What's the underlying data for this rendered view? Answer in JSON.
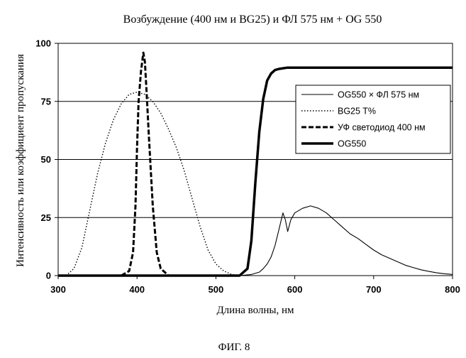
{
  "chart_data": {
    "type": "line",
    "title": "Возбуждение (400 нм и BG25) и ФЛ 575 нм + OG 550",
    "xlabel": "Длина волны, нм",
    "ylabel": "Интенсивность или коэффициент пропускания",
    "xlim": [
      300,
      800
    ],
    "ylim": [
      0,
      100
    ],
    "x_ticks": [
      "300",
      "400",
      "500",
      "600",
      "700",
      "800"
    ],
    "y_ticks": [
      "0",
      "25",
      "50",
      "75",
      "100"
    ],
    "grid": "horizontal",
    "legend_position": "top-right",
    "series": [
      {
        "name": "OG550 × ФЛ 575 нм",
        "style": "thin-solid",
        "x": [
          530,
          545,
          555,
          560,
          565,
          570,
          575,
          580,
          585,
          588,
          591,
          595,
          600,
          610,
          620,
          630,
          640,
          650,
          660,
          670,
          680,
          690,
          700,
          710,
          720,
          730,
          740,
          750,
          760,
          770,
          780,
          790,
          800
        ],
        "y": [
          0,
          0.5,
          1.5,
          3,
          5,
          8,
          13,
          20,
          27,
          24,
          19,
          24,
          27,
          29,
          30,
          29,
          27,
          24,
          21,
          18,
          16,
          13.5,
          11,
          9,
          7.5,
          6,
          4.5,
          3.5,
          2.5,
          1.8,
          1.2,
          0.8,
          0.5
        ]
      },
      {
        "name": "BG25 T%",
        "style": "dotted",
        "x": [
          310,
          320,
          330,
          340,
          350,
          360,
          370,
          380,
          390,
          400,
          410,
          420,
          430,
          440,
          450,
          460,
          470,
          480,
          490,
          500,
          510,
          520,
          530
        ],
        "y": [
          0,
          3,
          12,
          28,
          44,
          57,
          67,
          74,
          78,
          79,
          78,
          75,
          70,
          63,
          55,
          45,
          33,
          21,
          11,
          5,
          2,
          0.5,
          0
        ]
      },
      {
        "name": "УФ светодиод 400 нм",
        "style": "dashed",
        "x": [
          380,
          390,
          395,
          398,
          400,
          402,
          405,
          408,
          410,
          412,
          415,
          420,
          425,
          430,
          440,
          460
        ],
        "y": [
          0,
          2,
          10,
          30,
          55,
          75,
          88,
          96,
          92,
          80,
          60,
          30,
          10,
          3,
          0,
          0
        ]
      },
      {
        "name": "OG550",
        "style": "thick-solid",
        "x": [
          300,
          530,
          540,
          545,
          550,
          555,
          560,
          565,
          570,
          575,
          580,
          590,
          600,
          650,
          700,
          800
        ],
        "y": [
          0,
          0,
          3,
          15,
          40,
          62,
          76,
          84,
          87,
          88.5,
          89,
          89.5,
          89.5,
          89.5,
          89.5,
          89.5
        ]
      }
    ]
  },
  "caption": "ФИГ. 8"
}
